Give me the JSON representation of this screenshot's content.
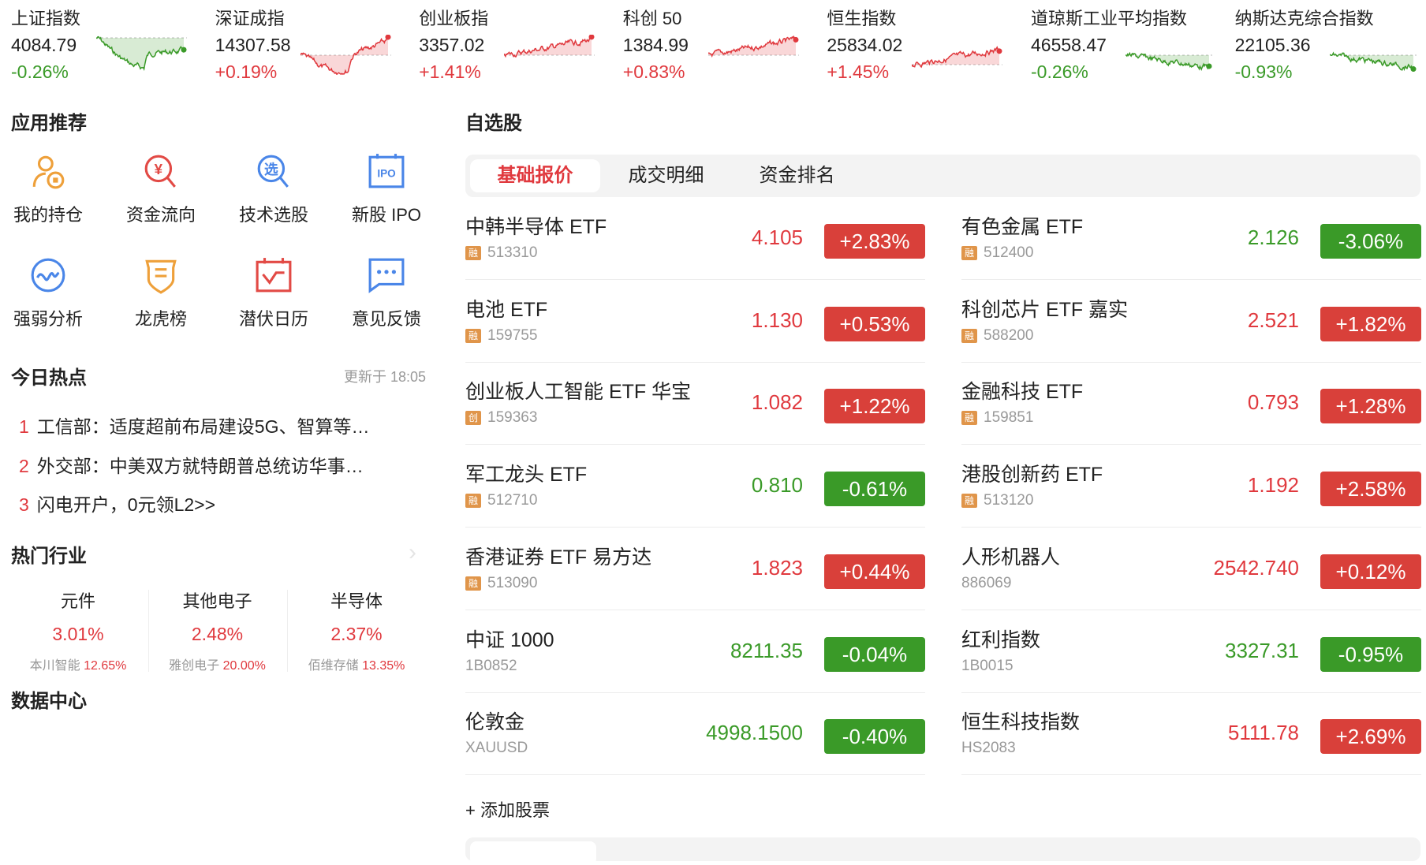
{
  "colors": {
    "up": "#e0393e",
    "down": "#3a9a28",
    "badge_up": "#d9403a",
    "accent": "#e0393e"
  },
  "indices": [
    {
      "name": "上证指数",
      "value": "4084.79",
      "change": "-0.26%",
      "dir": "down"
    },
    {
      "name": "深证成指",
      "value": "14307.58",
      "change": "+0.19%",
      "dir": "up"
    },
    {
      "name": "创业板指",
      "value": "3357.02",
      "change": "+1.41%",
      "dir": "up"
    },
    {
      "name": "科创 50",
      "value": "1384.99",
      "change": "+0.83%",
      "dir": "up"
    },
    {
      "name": "恒生指数",
      "value": "25834.02",
      "change": "+1.45%",
      "dir": "up"
    },
    {
      "name": "道琼斯工业平均指数",
      "value": "46558.47",
      "change": "-0.26%",
      "dir": "down"
    },
    {
      "name": "纳斯达克综合指数",
      "value": "22105.36",
      "change": "-0.93%",
      "dir": "down"
    }
  ],
  "apps": {
    "title": "应用推荐",
    "items": [
      {
        "label": "我的持仓",
        "icon": "holdings-icon"
      },
      {
        "label": "资金流向",
        "icon": "money-flow-icon"
      },
      {
        "label": "技术选股",
        "icon": "stock-picker-icon"
      },
      {
        "label": "新股 IPO",
        "icon": "ipo-calendar-icon"
      },
      {
        "label": "强弱分析",
        "icon": "strength-analysis-icon"
      },
      {
        "label": "龙虎榜",
        "icon": "shield-badge-icon"
      },
      {
        "label": "潜伏日历",
        "icon": "calendar-check-icon"
      },
      {
        "label": "意见反馈",
        "icon": "chat-bubble-icon"
      }
    ]
  },
  "hot_today": {
    "title": "今日热点",
    "updated": "更新于 18:05",
    "items": [
      {
        "rank": "1",
        "text": "工信部：适度超前布局建设5G、智算等…"
      },
      {
        "rank": "2",
        "text": "外交部：中美双方就特朗普总统访华事…"
      },
      {
        "rank": "3",
        "text": "闪电开户，0元领L2>>"
      }
    ]
  },
  "hot_industry": {
    "title": "热门行业",
    "items": [
      {
        "name": "元件",
        "change": "3.01%",
        "leader": "本川智能",
        "leader_change": "12.65%"
      },
      {
        "name": "其他电子",
        "change": "2.48%",
        "leader": "雅创电子",
        "leader_change": "20.00%"
      },
      {
        "name": "半导体",
        "change": "2.37%",
        "leader": "佰维存储",
        "leader_change": "13.35%"
      }
    ]
  },
  "data_center": {
    "title": "数据中心"
  },
  "watchlist": {
    "title": "自选股",
    "tabs": [
      "基础报价",
      "成交明细",
      "资金排名"
    ],
    "active_tab": 0,
    "add_label": "+ 添加股票",
    "stocks": [
      {
        "name": "中韩半导体 ETF",
        "tag": "融",
        "code": "513310",
        "price": "4.105",
        "change": "+2.83%",
        "dir": "up"
      },
      {
        "name": "有色金属 ETF",
        "tag": "融",
        "code": "512400",
        "price": "2.126",
        "change": "-3.06%",
        "dir": "down"
      },
      {
        "name": "电池 ETF",
        "tag": "融",
        "code": "159755",
        "price": "1.130",
        "change": "+0.53%",
        "dir": "up"
      },
      {
        "name": "科创芯片 ETF 嘉实",
        "tag": "融",
        "code": "588200",
        "price": "2.521",
        "change": "+1.82%",
        "dir": "up"
      },
      {
        "name": "创业板人工智能 ETF 华宝",
        "tag": "创",
        "code": "159363",
        "price": "1.082",
        "change": "+1.22%",
        "dir": "up"
      },
      {
        "name": "金融科技 ETF",
        "tag": "融",
        "code": "159851",
        "price": "0.793",
        "change": "+1.28%",
        "dir": "up"
      },
      {
        "name": "军工龙头 ETF",
        "tag": "融",
        "code": "512710",
        "price": "0.810",
        "change": "-0.61%",
        "dir": "down"
      },
      {
        "name": "港股创新药 ETF",
        "tag": "融",
        "code": "513120",
        "price": "1.192",
        "change": "+2.58%",
        "dir": "up"
      },
      {
        "name": "香港证券 ETF 易方达",
        "tag": "融",
        "code": "513090",
        "price": "1.823",
        "change": "+0.44%",
        "dir": "up"
      },
      {
        "name": "人形机器人",
        "tag": "",
        "code": "886069",
        "price": "2542.740",
        "change": "+0.12%",
        "dir": "up"
      },
      {
        "name": "中证 1000",
        "tag": "",
        "code": "1B0852",
        "price": "8211.35",
        "change": "-0.04%",
        "dir": "down"
      },
      {
        "name": "红利指数",
        "tag": "",
        "code": "1B0015",
        "price": "3327.31",
        "change": "-0.95%",
        "dir": "down"
      },
      {
        "name": "伦敦金",
        "tag": "",
        "code": "XAUUSD",
        "price": "4998.1500",
        "change": "-0.40%",
        "dir": "down"
      },
      {
        "name": "恒生科技指数",
        "tag": "",
        "code": "HS2083",
        "price": "5111.78",
        "change": "+2.69%",
        "dir": "up"
      }
    ]
  }
}
